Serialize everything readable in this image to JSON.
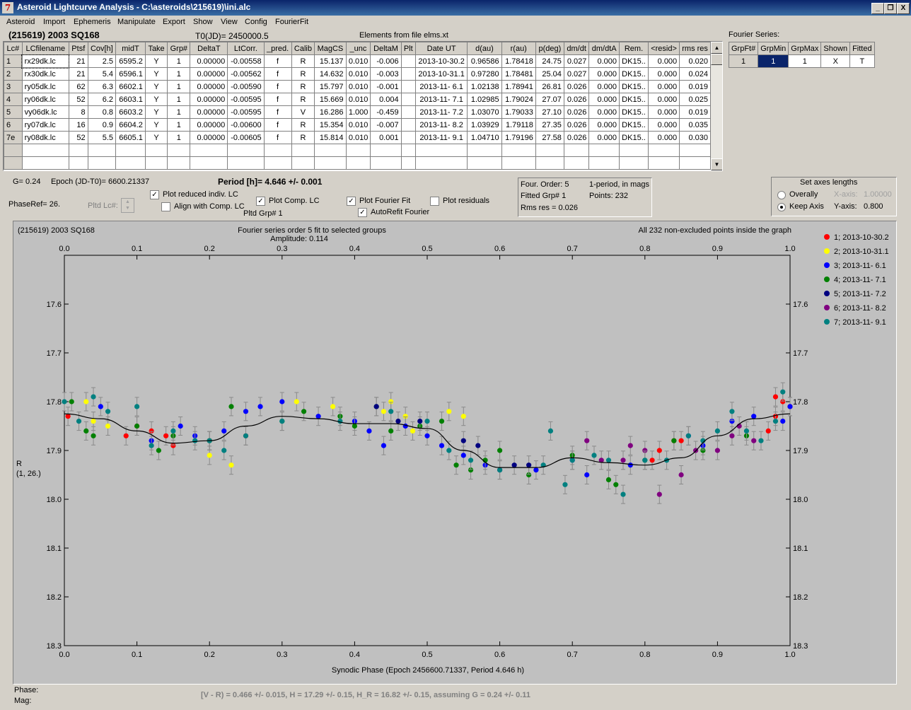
{
  "window": {
    "title": "Asteroid Lightcurve Analysis - C:\\asteroids\\215619)\\ini.alc",
    "icon": "app-icon",
    "controls": [
      "_",
      "❐",
      "X"
    ]
  },
  "menu": [
    "Asteroid",
    "Import",
    "Ephemeris",
    "Manipulate",
    "Export",
    "Show",
    "View",
    "Config",
    "FourierFit"
  ],
  "header": {
    "asteroid": "(215619) 2003 SQ168",
    "t0": "T0(JD)= 2450000.5",
    "elements": "Elements from file elms.xt"
  },
  "lc_table": {
    "columns": [
      "Lc#",
      "LCfilename",
      "Ptsf",
      "Cov[h]",
      "midT",
      "Take",
      "Grp#",
      "DeltaT",
      "LtCorr.",
      "_pred.",
      "Calib",
      "MagCS",
      "_unc",
      "DeltaM",
      "Plt",
      "Date UT",
      "d(au)",
      "r(au)",
      "p(deg)",
      "dm/dt",
      "dm/dtA",
      "Rem.",
      "<resid>",
      "rms res"
    ],
    "rows": [
      [
        "1",
        "rx29dk.lc",
        "21",
        "2.5",
        "6595.2",
        "Y",
        "1",
        "0.00000",
        "-0.00558",
        "f",
        "R",
        "15.137",
        "0.010",
        "-0.006",
        "",
        "2013-10-30.2",
        "0.96586",
        "1.78418",
        "24.75",
        "0.027",
        "0.000",
        "DK15..",
        "0.000",
        "0.020"
      ],
      [
        "2",
        "rx30dk.lc",
        "21",
        "5.4",
        "6596.1",
        "Y",
        "1",
        "0.00000",
        "-0.00562",
        "f",
        "R",
        "14.632",
        "0.010",
        "-0.003",
        "",
        "2013-10-31.1",
        "0.97280",
        "1.78481",
        "25.04",
        "0.027",
        "0.000",
        "DK15..",
        "0.000",
        "0.024"
      ],
      [
        "3",
        "ry05dk.lc",
        "62",
        "6.3",
        "6602.1",
        "Y",
        "1",
        "0.00000",
        "-0.00590",
        "f",
        "R",
        "15.797",
        "0.010",
        "-0.001",
        "",
        "2013-11- 6.1",
        "1.02138",
        "1.78941",
        "26.81",
        "0.026",
        "0.000",
        "DK15..",
        "0.000",
        "0.019"
      ],
      [
        "4",
        "ry06dk.lc",
        "52",
        "6.2",
        "6603.1",
        "Y",
        "1",
        "0.00000",
        "-0.00595",
        "f",
        "R",
        "15.669",
        "0.010",
        "0.004",
        "",
        "2013-11- 7.1",
        "1.02985",
        "1.79024",
        "27.07",
        "0.026",
        "0.000",
        "DK15..",
        "0.000",
        "0.025"
      ],
      [
        "5",
        "vy06dk.lc",
        "8",
        "0.8",
        "6603.2",
        "Y",
        "1",
        "0.00000",
        "-0.00595",
        "f",
        "V",
        "16.286",
        "1.000",
        "-0.459",
        "",
        "2013-11- 7.2",
        "1.03070",
        "1.79033",
        "27.10",
        "0.026",
        "0.000",
        "DK15..",
        "0.000",
        "0.019"
      ],
      [
        "6",
        "ry07dk.lc",
        "16",
        "0.9",
        "6604.2",
        "Y",
        "1",
        "0.00000",
        "-0.00600",
        "f",
        "R",
        "15.354",
        "0.010",
        "-0.007",
        "",
        "2013-11- 8.2",
        "1.03929",
        "1.79118",
        "27.35",
        "0.026",
        "0.000",
        "DK15..",
        "0.000",
        "0.035"
      ],
      [
        "7e",
        "ry08dk.lc",
        "52",
        "5.5",
        "6605.1",
        "Y",
        "1",
        "0.00000",
        "-0.00605",
        "f",
        "R",
        "15.814",
        "0.010",
        "0.001",
        "",
        "2013-11- 9.1",
        "1.04710",
        "1.79196",
        "27.58",
        "0.026",
        "0.000",
        "DK15..",
        "0.000",
        "0.030"
      ]
    ]
  },
  "fourier_series": {
    "label": "Fourier Series:",
    "columns": [
      "GrpFt#",
      "GrpMin",
      "GrpMax",
      "Shown",
      "Fitted"
    ],
    "row": [
      "1",
      "1",
      "1",
      "X",
      "T"
    ]
  },
  "controls": {
    "g_value": "G= 0.24",
    "epoch": "Epoch (JD-T0)= 6600.21337",
    "period": "Period [h]= 4.646 +/- 0.001",
    "phaseref": "PhaseRef= 26.",
    "pltd_lc": "Pltd Lc#:",
    "plot_reduced": "Plot reduced indiv. LC",
    "align_comp": "Align with Comp. LC",
    "plot_comp": "Plot Comp. LC",
    "pltd_grp": "Pltd Grp#  1",
    "plot_fourier": "Plot Fourier Fit",
    "autorefit": "AutoRefit Fourier",
    "plot_residuals": "Plot residuals",
    "checks": {
      "plot_reduced": true,
      "align_comp": false,
      "plot_comp": true,
      "plot_fourier": true,
      "autorefit": true,
      "plot_residuals": false
    }
  },
  "fit_info": {
    "order": "Four. Order:  5",
    "fitted_grp": "Fitted Grp# 1",
    "rms": "Rms res     = 0.026",
    "mode": "1-period, in mags",
    "points": "Points: 232"
  },
  "axes_box": {
    "title": "Set axes lengths",
    "overally": "Overally",
    "keep_axis": "Keep Axis",
    "xaxis_label": "X-axis:",
    "xaxis_value": "1.00000",
    "yaxis_label": "Y-axis:",
    "yaxis_value": "0.800",
    "selected": "keep_axis"
  },
  "plot": {
    "left_title": "(215619) 2003 SQ168",
    "center_title": "Fourier series order 5 fit to selected groups",
    "amplitude": "Amplitude: 0.114",
    "right_title": "All 232 non-excluded points inside the graph",
    "xlabel": "Synodic Phase (Epoch 2456600.71337, Period 4.646 h)",
    "ylabel_1": "R",
    "ylabel_2": "(1, 26.)"
  },
  "chart_data": {
    "type": "scatter",
    "x_ticks": [
      "0.0",
      "0.1",
      "0.2",
      "0.3",
      "0.4",
      "0.5",
      "0.6",
      "0.7",
      "0.8",
      "0.9",
      "1.0"
    ],
    "y_ticks": [
      "17.6",
      "17.7",
      "17.8",
      "17.9",
      "18.0",
      "18.1",
      "18.2",
      "18.3"
    ],
    "xlim": [
      0,
      1
    ],
    "ylim": [
      18.3,
      17.5
    ],
    "y_inverted": true,
    "legend": [
      {
        "name": "1; 2013-10-30.2",
        "color": "#ff0000"
      },
      {
        "name": "2; 2013-10-31.1",
        "color": "#ffff00"
      },
      {
        "name": "3; 2013-11- 6.1",
        "color": "#0000ff"
      },
      {
        "name": "4; 2013-11- 7.1",
        "color": "#008000"
      },
      {
        "name": "5; 2013-11- 7.2",
        "color": "#000080"
      },
      {
        "name": "6; 2013-11- 8.2",
        "color": "#800080"
      },
      {
        "name": "7; 2013-11- 9.1",
        "color": "#008080"
      }
    ],
    "fit_curve": [
      [
        0.0,
        17.825
      ],
      [
        0.05,
        17.835
      ],
      [
        0.1,
        17.86
      ],
      [
        0.15,
        17.885
      ],
      [
        0.2,
        17.88
      ],
      [
        0.25,
        17.85
      ],
      [
        0.3,
        17.83
      ],
      [
        0.35,
        17.835
      ],
      [
        0.4,
        17.845
      ],
      [
        0.45,
        17.845
      ],
      [
        0.5,
        17.855
      ],
      [
        0.55,
        17.9
      ],
      [
        0.6,
        17.935
      ],
      [
        0.65,
        17.935
      ],
      [
        0.7,
        17.915
      ],
      [
        0.75,
        17.925
      ],
      [
        0.8,
        17.93
      ],
      [
        0.85,
        17.915
      ],
      [
        0.9,
        17.87
      ],
      [
        0.95,
        17.835
      ],
      [
        1.0,
        17.825
      ]
    ],
    "series": [
      {
        "name": "1; 2013-10-30.2",
        "points": [
          [
            0.005,
            17.83
          ],
          [
            0.085,
            17.87
          ],
          [
            0.1,
            17.85
          ],
          [
            0.12,
            17.86
          ],
          [
            0.15,
            17.89
          ],
          [
            0.14,
            17.87
          ],
          [
            0.2,
            17.88
          ],
          [
            0.25,
            17.87
          ],
          [
            0.81,
            17.92
          ],
          [
            0.82,
            17.9
          ],
          [
            0.84,
            17.88
          ],
          [
            0.85,
            17.88
          ],
          [
            0.97,
            17.86
          ],
          [
            0.98,
            17.79
          ],
          [
            0.99,
            17.8
          ],
          [
            1.0,
            17.81
          ],
          [
            0.98,
            17.83
          ]
        ]
      },
      {
        "name": "2; 2013-10-31.1",
        "points": [
          [
            0.03,
            17.8
          ],
          [
            0.04,
            17.84
          ],
          [
            0.06,
            17.85
          ],
          [
            0.2,
            17.91
          ],
          [
            0.23,
            17.93
          ],
          [
            0.32,
            17.8
          ],
          [
            0.37,
            17.81
          ],
          [
            0.44,
            17.82
          ],
          [
            0.45,
            17.8
          ],
          [
            0.47,
            17.83
          ],
          [
            0.48,
            17.86
          ],
          [
            0.53,
            17.82
          ],
          [
            0.55,
            17.83
          ]
        ]
      },
      {
        "name": "3; 2013-11- 6.1",
        "points": [
          [
            0.05,
            17.81
          ],
          [
            0.12,
            17.88
          ],
          [
            0.16,
            17.85
          ],
          [
            0.18,
            17.87
          ],
          [
            0.22,
            17.86
          ],
          [
            0.25,
            17.82
          ],
          [
            0.27,
            17.81
          ],
          [
            0.3,
            17.8
          ],
          [
            0.35,
            17.83
          ],
          [
            0.4,
            17.84
          ],
          [
            0.42,
            17.86
          ],
          [
            0.44,
            17.89
          ],
          [
            0.47,
            17.85
          ],
          [
            0.5,
            17.87
          ],
          [
            0.52,
            17.89
          ],
          [
            0.55,
            17.91
          ],
          [
            0.58,
            17.93
          ],
          [
            0.65,
            17.94
          ],
          [
            0.7,
            17.92
          ],
          [
            0.72,
            17.95
          ],
          [
            0.78,
            17.93
          ],
          [
            0.86,
            17.87
          ],
          [
            0.88,
            17.89
          ],
          [
            0.92,
            17.84
          ],
          [
            0.95,
            17.83
          ],
          [
            0.99,
            17.84
          ],
          [
            1.0,
            17.81
          ]
        ]
      },
      {
        "name": "4; 2013-11- 7.1",
        "points": [
          [
            0.01,
            17.8
          ],
          [
            0.03,
            17.86
          ],
          [
            0.04,
            17.87
          ],
          [
            0.1,
            17.85
          ],
          [
            0.13,
            17.9
          ],
          [
            0.15,
            17.87
          ],
          [
            0.2,
            17.88
          ],
          [
            0.23,
            17.81
          ],
          [
            0.3,
            17.84
          ],
          [
            0.33,
            17.82
          ],
          [
            0.38,
            17.83
          ],
          [
            0.4,
            17.85
          ],
          [
            0.43,
            17.81
          ],
          [
            0.45,
            17.86
          ],
          [
            0.49,
            17.85
          ],
          [
            0.52,
            17.84
          ],
          [
            0.54,
            17.93
          ],
          [
            0.56,
            17.94
          ],
          [
            0.58,
            17.92
          ],
          [
            0.6,
            17.9
          ],
          [
            0.64,
            17.95
          ],
          [
            0.7,
            17.91
          ],
          [
            0.75,
            17.96
          ],
          [
            0.76,
            17.97
          ],
          [
            0.8,
            17.92
          ],
          [
            0.84,
            17.88
          ],
          [
            0.88,
            17.9
          ],
          [
            0.94,
            17.87
          ]
        ]
      },
      {
        "name": "5; 2013-11- 7.2",
        "points": [
          [
            0.43,
            17.81
          ],
          [
            0.46,
            17.84
          ],
          [
            0.49,
            17.84
          ],
          [
            0.55,
            17.88
          ],
          [
            0.57,
            17.89
          ],
          [
            0.6,
            17.94
          ],
          [
            0.62,
            17.93
          ],
          [
            0.64,
            17.93
          ]
        ]
      },
      {
        "name": "6; 2013-11- 8.2",
        "points": [
          [
            0.72,
            17.88
          ],
          [
            0.74,
            17.92
          ],
          [
            0.77,
            17.92
          ],
          [
            0.78,
            17.89
          ],
          [
            0.8,
            17.9
          ],
          [
            0.82,
            17.99
          ],
          [
            0.85,
            17.95
          ],
          [
            0.87,
            17.9
          ],
          [
            0.9,
            17.9
          ],
          [
            0.93,
            17.85
          ],
          [
            0.95,
            17.88
          ],
          [
            0.92,
            17.87
          ]
        ]
      },
      {
        "name": "7; 2013-11- 9.1",
        "points": [
          [
            0.0,
            17.8
          ],
          [
            0.02,
            17.84
          ],
          [
            0.04,
            17.79
          ],
          [
            0.06,
            17.82
          ],
          [
            0.1,
            17.81
          ],
          [
            0.12,
            17.89
          ],
          [
            0.15,
            17.86
          ],
          [
            0.18,
            17.88
          ],
          [
            0.2,
            17.88
          ],
          [
            0.22,
            17.9
          ],
          [
            0.25,
            17.87
          ],
          [
            0.3,
            17.84
          ],
          [
            0.38,
            17.84
          ],
          [
            0.45,
            17.82
          ],
          [
            0.5,
            17.84
          ],
          [
            0.53,
            17.9
          ],
          [
            0.56,
            17.92
          ],
          [
            0.6,
            17.94
          ],
          [
            0.66,
            17.93
          ],
          [
            0.67,
            17.86
          ],
          [
            0.69,
            17.97
          ],
          [
            0.7,
            17.92
          ],
          [
            0.73,
            17.91
          ],
          [
            0.75,
            17.92
          ],
          [
            0.77,
            17.99
          ],
          [
            0.8,
            17.92
          ],
          [
            0.83,
            17.92
          ],
          [
            0.86,
            17.87
          ],
          [
            0.88,
            17.88
          ],
          [
            0.9,
            17.86
          ],
          [
            0.92,
            17.82
          ],
          [
            0.94,
            17.86
          ],
          [
            0.96,
            17.88
          ],
          [
            0.98,
            17.84
          ],
          [
            0.99,
            17.78
          ]
        ]
      }
    ]
  },
  "footer": {
    "phase": "Phase:",
    "mag": "Mag:",
    "result": "[V - R) = 0.466 +/- 0.015, H = 17.29 +/- 0.15, H_R = 16.82 +/- 0.15, assuming G = 0.24 +/- 0.11"
  }
}
